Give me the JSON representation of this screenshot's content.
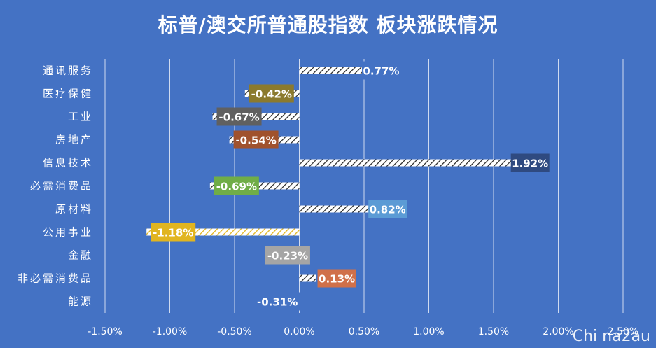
{
  "chart_data": {
    "type": "bar",
    "orientation": "horizontal",
    "title": "标普/澳交所普通股指数 板块涨跌情况",
    "categories": [
      "通讯服务",
      "医疗保健",
      "工业",
      "房地产",
      "信息技术",
      "必需消费品",
      "原材料",
      "公用事业",
      "金融",
      "非必需消费品",
      "能源"
    ],
    "values": [
      0.77,
      -0.42,
      -0.67,
      -0.54,
      1.92,
      -0.69,
      0.82,
      -1.18,
      -0.23,
      0.13,
      -0.31
    ],
    "labels": [
      "0.77%",
      "-0.42%",
      "-0.67%",
      "-0.54%",
      "1.92%",
      "-0.69%",
      "0.82%",
      "-1.18%",
      "-0.23%",
      "0.13%",
      "-0.31%"
    ],
    "label_box_colors": [
      "#4472C4",
      "#8B7A2E",
      "#606060",
      "#A0522D",
      "#2F4A80",
      "#70AD47",
      "#5B9BD5",
      "#E1B520",
      "#A5A5A5",
      "#D0704A",
      "#4472C4"
    ],
    "xlim": [
      -1.5,
      2.5
    ],
    "xticks": [
      -1.5,
      -1.0,
      -0.5,
      0.0,
      0.5,
      1.0,
      1.5,
      2.0,
      2.5
    ],
    "xtick_labels": [
      "-1.50%",
      "-1.00%",
      "-0.50%",
      "0.00%",
      "0.50%",
      "1.00%",
      "1.50%",
      "2.00%",
      "2.50%"
    ],
    "grid": true,
    "bar_style": "hatched-white"
  },
  "watermark": "Chi na2au"
}
